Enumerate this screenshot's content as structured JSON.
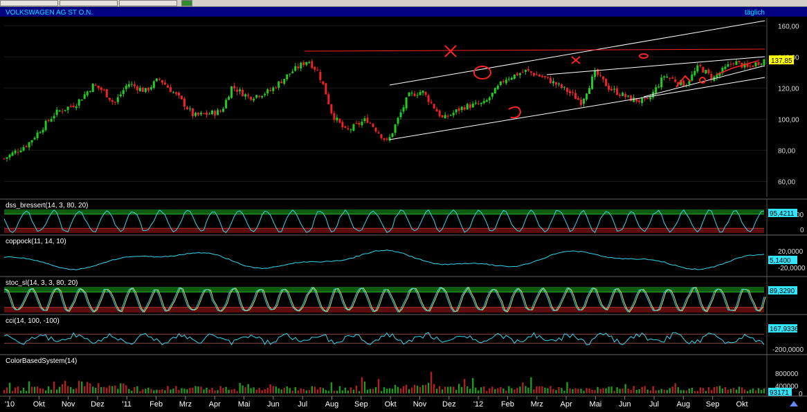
{
  "window": {
    "title": "VOLKSWAGEN AG ST O.N.",
    "interval": "täglich",
    "colors": {
      "background": "#000000",
      "header_bar": "#000080",
      "title_text": "#00e5ff",
      "candle_up": "#22cc22",
      "candle_down": "#ee2222",
      "indicator_line": "#33d6ee",
      "zone_green": "#0d5c0d",
      "zone_red": "#5c0d0d",
      "annotation": "#ff2222",
      "trendline": "#ffffff",
      "last_price_box": "#ffff00"
    }
  },
  "x_axis": {
    "labels": [
      "'10",
      "Okt",
      "Nov",
      "Dez",
      "'11",
      "Feb",
      "Mrz",
      "Apr",
      "Mai",
      "Jun",
      "Jul",
      "Aug",
      "Sep",
      "Okt",
      "Nov",
      "Dez",
      "'12",
      "Feb",
      "Mrz",
      "Apr",
      "Mai",
      "Jun",
      "Jul",
      "Aug",
      "Sep",
      "Okt"
    ]
  },
  "chart_data": [
    {
      "type": "candlestick",
      "name": "price",
      "ylim": [
        50,
        165
      ],
      "ticks": [
        60,
        80,
        100,
        120,
        140,
        160
      ],
      "tick_labels": [
        "60,00",
        "80,00",
        "100,00",
        "120,00",
        "140,00",
        "160,00"
      ],
      "last_value_label": "137,85",
      "anchors": [
        [
          0,
          73
        ],
        [
          40,
          84
        ],
        [
          80,
          104
        ],
        [
          110,
          110
        ],
        [
          135,
          122
        ],
        [
          150,
          118
        ],
        [
          165,
          110
        ],
        [
          185,
          123
        ],
        [
          210,
          118
        ],
        [
          230,
          126
        ],
        [
          260,
          113
        ],
        [
          280,
          102
        ],
        [
          320,
          105
        ],
        [
          335,
          121
        ],
        [
          360,
          114
        ],
        [
          390,
          118
        ],
        [
          420,
          130
        ],
        [
          445,
          138
        ],
        [
          460,
          130
        ],
        [
          470,
          118
        ],
        [
          480,
          103
        ],
        [
          500,
          92
        ],
        [
          530,
          100
        ],
        [
          560,
          85
        ],
        [
          590,
          115
        ],
        [
          610,
          118
        ],
        [
          640,
          100
        ],
        [
          670,
          108
        ],
        [
          700,
          110
        ],
        [
          730,
          126
        ],
        [
          760,
          131
        ],
        [
          790,
          126
        ],
        [
          820,
          118
        ],
        [
          840,
          111
        ],
        [
          860,
          130
        ],
        [
          880,
          120
        ],
        [
          910,
          113
        ],
        [
          935,
          111
        ],
        [
          960,
          128
        ],
        [
          990,
          122
        ],
        [
          1010,
          134
        ],
        [
          1030,
          126
        ],
        [
          1060,
          137
        ],
        [
          1080,
          133
        ],
        [
          1103,
          138
        ]
      ]
    },
    {
      "type": "line",
      "name": "dss_bressert",
      "label": "dss_bressert(14, 3, 80, 20)",
      "ylim": [
        0,
        100
      ],
      "last_value_label": "95,4211",
      "zone_labels": [
        "00",
        "0"
      ],
      "zones": {
        "upper": 80,
        "lower": 20
      }
    },
    {
      "type": "line",
      "name": "coppock",
      "label": "coppock(11, 14, 10)",
      "ylim": [
        -30,
        30
      ],
      "last_value_label": "5,1400",
      "tick_labels": [
        "20,0000",
        "-20,0000"
      ]
    },
    {
      "type": "line",
      "name": "stoc_sl",
      "label": "stoc_sl(14, 3, 3, 80, 20)",
      "ylim": [
        0,
        100
      ],
      "last_value_label": "89,3290",
      "zones": {
        "upper": 80,
        "lower": 20
      }
    },
    {
      "type": "line",
      "name": "cci",
      "label": "cci(14, 100, -100)",
      "ylim": [
        -300,
        300
      ],
      "last_value_label": "167,9336",
      "tick_labels": [
        "-200,0000"
      ]
    },
    {
      "type": "bar",
      "name": "ColorBasedSystem",
      "label": "ColorBasedSystem(14)",
      "ylim": [
        0,
        1000000
      ],
      "last_value_label": "93171",
      "tick_labels": [
        "800000",
        "400000",
        "0"
      ]
    }
  ]
}
